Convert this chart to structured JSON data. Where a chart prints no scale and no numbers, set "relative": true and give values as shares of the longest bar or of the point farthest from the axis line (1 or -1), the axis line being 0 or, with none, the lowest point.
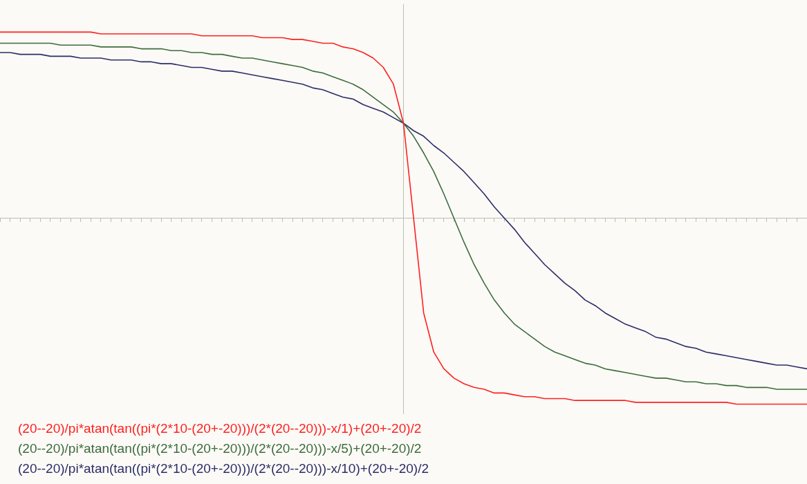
{
  "chart_data": {
    "type": "line",
    "relative": true,
    "grid": false,
    "marker": "none",
    "line_style": "solid",
    "legend": "bottom left",
    "categories": [
      null,
      null,
      null,
      null,
      null,
      null,
      null,
      null,
      null,
      null,
      null,
      null,
      null,
      null,
      null,
      null,
      null,
      null,
      null,
      null,
      null,
      null,
      null,
      null,
      null,
      null,
      null,
      null,
      null,
      null,
      null,
      null,
      null,
      null,
      null,
      null,
      null,
      null,
      null,
      null,
      null,
      null,
      null,
      null,
      null,
      null,
      null,
      null,
      null,
      null,
      null,
      null,
      null,
      null,
      null,
      null,
      null,
      null,
      null,
      null,
      null,
      null,
      null,
      null,
      null,
      null,
      null,
      null,
      null,
      null,
      null,
      null,
      null,
      null,
      null,
      null,
      null,
      null,
      null,
      null,
      null
    ],
    "series": [
      {
        "name": "(20--20)/pi*atan(tan((pi*(2*10-(20+-20)))/(2*(20--20)))-x/1)+(20+-20)/2",
        "color": "#ff2020",
        "values": [
          1.0,
          1.0,
          1.0,
          1.0,
          1.0,
          1.0,
          1.0,
          1.0,
          1.0,
          1.0,
          0.99,
          0.99,
          0.99,
          0.99,
          0.99,
          0.99,
          0.99,
          0.99,
          0.99,
          0.99,
          0.98,
          0.98,
          0.98,
          0.98,
          0.98,
          0.98,
          0.97,
          0.97,
          0.97,
          0.96,
          0.96,
          0.95,
          0.94,
          0.94,
          0.92,
          0.91,
          0.89,
          0.86,
          0.81,
          0.72,
          0.51,
          0,
          -0.51,
          -0.72,
          -0.81,
          -0.86,
          -0.89,
          -0.91,
          -0.92,
          -0.94,
          -0.94,
          -0.95,
          -0.96,
          -0.96,
          -0.97,
          -0.97,
          -0.97,
          -0.98,
          -0.98,
          -0.98,
          -0.98,
          -0.98,
          -0.98,
          -0.99,
          -0.99,
          -0.99,
          -0.99,
          -0.99,
          -0.99,
          -0.99,
          -0.99,
          -0.99,
          -0.99,
          -1.0,
          -1.0,
          -1.0,
          -1.0,
          -1.0,
          -1.0,
          -1.0,
          -1.0
        ]
      },
      {
        "name": "(20--20)/pi*atan(tan((pi*(2*10-(20+-20)))/(2*(20--20)))-x/5)+(20+-20)/2",
        "color": "#3d6b3d",
        "values": [
          0.94,
          0.94,
          0.94,
          0.94,
          0.94,
          0.94,
          0.93,
          0.93,
          0.93,
          0.93,
          0.92,
          0.92,
          0.92,
          0.92,
          0.91,
          0.91,
          0.91,
          0.9,
          0.9,
          0.89,
          0.89,
          0.88,
          0.88,
          0.87,
          0.86,
          0.86,
          0.85,
          0.84,
          0.83,
          0.82,
          0.81,
          0.79,
          0.78,
          0.76,
          0.74,
          0.72,
          0.69,
          0.65,
          0.61,
          0.57,
          0.51,
          0.44,
          0.35,
          0.25,
          0.13,
          0,
          -0.13,
          -0.25,
          -0.35,
          -0.44,
          -0.51,
          -0.57,
          -0.61,
          -0.65,
          -0.69,
          -0.72,
          -0.74,
          -0.76,
          -0.78,
          -0.79,
          -0.81,
          -0.82,
          -0.83,
          -0.84,
          -0.85,
          -0.86,
          -0.86,
          -0.87,
          -0.88,
          -0.88,
          -0.89,
          -0.89,
          -0.9,
          -0.9,
          -0.91,
          -0.91,
          -0.91,
          -0.92,
          -0.92,
          -0.92,
          -0.92
        ]
      },
      {
        "name": "(20--20)/pi*atan(tan((pi*(2*10-(20+-20)))/(2*(20--20)))-x/10)+(20+-20)/2",
        "color": "#2c2c68",
        "values": [
          0.89,
          0.89,
          0.88,
          0.88,
          0.88,
          0.87,
          0.87,
          0.87,
          0.86,
          0.86,
          0.86,
          0.85,
          0.85,
          0.85,
          0.84,
          0.84,
          0.83,
          0.83,
          0.82,
          0.81,
          0.81,
          0.8,
          0.79,
          0.79,
          0.78,
          0.77,
          0.76,
          0.75,
          0.74,
          0.73,
          0.72,
          0.7,
          0.69,
          0.67,
          0.65,
          0.64,
          0.61,
          0.59,
          0.57,
          0.54,
          0.51,
          0.47,
          0.44,
          0.39,
          0.35,
          0.3,
          0.25,
          0.19,
          0.13,
          0.06,
          0,
          -0.06,
          -0.13,
          -0.19,
          -0.25,
          -0.3,
          -0.35,
          -0.39,
          -0.44,
          -0.47,
          -0.51,
          -0.54,
          -0.57,
          -0.59,
          -0.61,
          -0.64,
          -0.65,
          -0.67,
          -0.69,
          -0.7,
          -0.72,
          -0.73,
          -0.74,
          -0.75,
          -0.76,
          -0.77,
          -0.78,
          -0.79,
          -0.79,
          -0.8,
          -0.81
        ]
      }
    ]
  }
}
